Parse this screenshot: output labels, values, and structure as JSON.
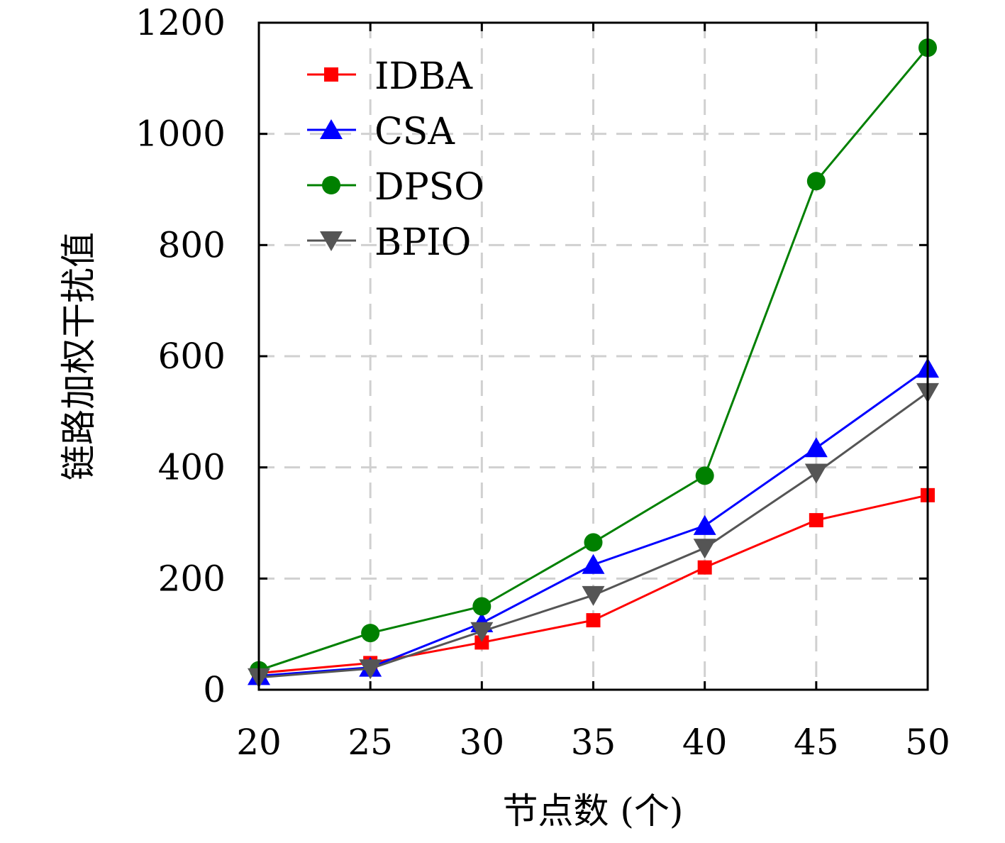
{
  "chart_data": {
    "type": "line",
    "title": "",
    "xlabel": "节点数 (个)",
    "ylabel": "链路加权干扰值",
    "x": [
      20,
      25,
      30,
      35,
      40,
      45,
      50
    ],
    "xlim": [
      20,
      50
    ],
    "ylim": [
      0,
      1200
    ],
    "xticks": [
      "20",
      "25",
      "30",
      "35",
      "40",
      "45",
      "50"
    ],
    "yticks": [
      "0",
      "200",
      "400",
      "600",
      "800",
      "1000",
      "1200"
    ],
    "grid": true,
    "legend_position": "top-left",
    "series": [
      {
        "name": "IDBA",
        "color": "#ff0000",
        "marker": "square",
        "values": [
          30,
          48,
          85,
          125,
          220,
          305,
          350
        ]
      },
      {
        "name": "CSA",
        "color": "#0000ff",
        "marker": "triangle-up",
        "values": [
          25,
          40,
          120,
          225,
          295,
          435,
          578
        ]
      },
      {
        "name": "DPSO",
        "color": "#008000",
        "marker": "circle",
        "values": [
          35,
          102,
          150,
          265,
          385,
          915,
          1155
        ]
      },
      {
        "name": "BPIO",
        "color": "#555555",
        "marker": "triangle-down",
        "values": [
          22,
          38,
          105,
          170,
          255,
          390,
          535
        ]
      }
    ]
  }
}
